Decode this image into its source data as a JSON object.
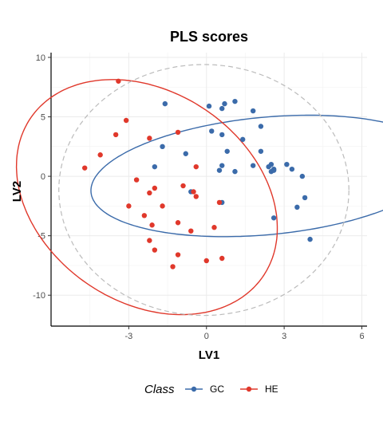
{
  "chart_data": {
    "type": "scatter",
    "title": "PLS scores",
    "xlabel": "LV1",
    "ylabel": "LV2",
    "xlim": [
      -6.0,
      6.2
    ],
    "ylim": [
      -12.6,
      10.4
    ],
    "xticks": [
      -3,
      0,
      3,
      6
    ],
    "yticks": [
      -10,
      -5,
      0,
      5,
      10
    ],
    "grid": true,
    "legend": {
      "title": "Class",
      "position": "bottom"
    },
    "series": [
      {
        "name": "GC",
        "color": "#3B6BAA",
        "points": [
          [
            -1.6,
            6.1
          ],
          [
            0.1,
            5.9
          ],
          [
            0.7,
            6.1
          ],
          [
            1.1,
            6.3
          ],
          [
            0.6,
            5.7
          ],
          [
            1.8,
            5.5
          ],
          [
            2.1,
            4.2
          ],
          [
            0.2,
            3.8
          ],
          [
            0.6,
            3.5
          ],
          [
            1.4,
            3.1
          ],
          [
            -1.7,
            2.5
          ],
          [
            -0.8,
            1.9
          ],
          [
            0.8,
            2.1
          ],
          [
            2.1,
            2.1
          ],
          [
            -2.0,
            0.8
          ],
          [
            0.6,
            0.9
          ],
          [
            1.8,
            0.9
          ],
          [
            0.5,
            0.5
          ],
          [
            1.1,
            0.4
          ],
          [
            2.5,
            1.0
          ],
          [
            2.4,
            0.8
          ],
          [
            2.6,
            0.6
          ],
          [
            2.5,
            0.4
          ],
          [
            2.6,
            0.5
          ],
          [
            3.1,
            1.0
          ],
          [
            3.3,
            0.6
          ],
          [
            3.7,
            0.0
          ],
          [
            3.8,
            -1.8
          ],
          [
            3.5,
            -2.6
          ],
          [
            2.6,
            -3.5
          ],
          [
            -0.6,
            -1.3
          ],
          [
            0.6,
            -2.2
          ],
          [
            4.0,
            -5.3
          ]
        ]
      },
      {
        "name": "HE",
        "color": "#E0382B",
        "points": [
          [
            -3.4,
            8.0
          ],
          [
            -3.1,
            4.7
          ],
          [
            -3.5,
            3.5
          ],
          [
            -1.1,
            3.7
          ],
          [
            -2.2,
            3.2
          ],
          [
            -4.1,
            1.8
          ],
          [
            -4.7,
            0.7
          ],
          [
            -0.4,
            0.8
          ],
          [
            -2.7,
            -0.3
          ],
          [
            -0.9,
            -0.8
          ],
          [
            -2.0,
            -1.0
          ],
          [
            -2.2,
            -1.4
          ],
          [
            -0.5,
            -1.3
          ],
          [
            -0.4,
            -1.7
          ],
          [
            0.5,
            -2.2
          ],
          [
            -3.0,
            -2.5
          ],
          [
            -1.7,
            -2.5
          ],
          [
            -2.4,
            -3.3
          ],
          [
            -1.1,
            -3.9
          ],
          [
            -2.1,
            -4.1
          ],
          [
            -0.6,
            -4.6
          ],
          [
            0.3,
            -4.3
          ],
          [
            -2.2,
            -5.4
          ],
          [
            -2.0,
            -6.2
          ],
          [
            -1.1,
            -6.6
          ],
          [
            0.0,
            -7.1
          ],
          [
            0.6,
            -6.9
          ],
          [
            -1.3,
            -7.6
          ]
        ]
      }
    ],
    "ellipses": [
      {
        "series": "GC",
        "color": "#3B6BAA",
        "dashed": false,
        "cx": 2.32,
        "cy": 0.03,
        "rx": 4.8,
        "ry": 7.0,
        "rotation_deg": -70
      },
      {
        "series": "HE",
        "color": "#E0382B",
        "dashed": false,
        "cx": -2.3,
        "cy": -1.75,
        "rx": 4.8,
        "ry": 10.0,
        "rotation_deg": 10
      },
      {
        "series": "all",
        "color": "#BBBBBB",
        "dashed": true,
        "cx": -0.1,
        "cy": -1.15,
        "rx": 5.6,
        "ry": 10.55,
        "rotation_deg": 0
      }
    ]
  }
}
